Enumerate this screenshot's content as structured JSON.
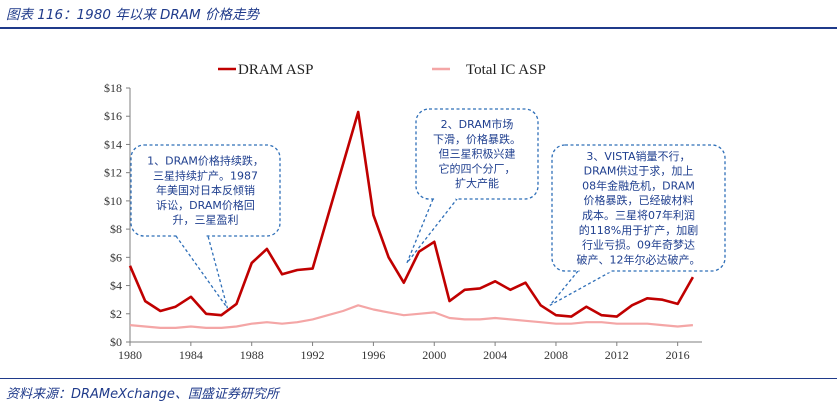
{
  "figure": {
    "title": "图表 116：1980 年以来 DRAM 价格走势",
    "source": "资料来源：DRAMeXchange、国盛证券研究所"
  },
  "chart_data": {
    "type": "line",
    "xlabel": "",
    "ylabel": "",
    "xlim": [
      1980,
      2017.6
    ],
    "ylim": [
      0,
      18
    ],
    "x_ticks": [
      "1980",
      "1984",
      "1988",
      "1992",
      "1996",
      "2000",
      "2004",
      "2008",
      "2012",
      "2016"
    ],
    "y_ticks": [
      "$0",
      "$2",
      "$4",
      "$6",
      "$8",
      "$10",
      "$12",
      "$14",
      "$16",
      "$18"
    ],
    "grid": false,
    "legend_position": "top-center",
    "series": [
      {
        "name": "DRAM ASP",
        "color": "#c00000",
        "points": [
          [
            1980,
            5.4
          ],
          [
            1981,
            2.9
          ],
          [
            1982,
            2.2
          ],
          [
            1983,
            2.5
          ],
          [
            1984,
            3.2
          ],
          [
            1985,
            2.0
          ],
          [
            1986,
            1.9
          ],
          [
            1987,
            2.7
          ],
          [
            1988,
            5.6
          ],
          [
            1989,
            6.6
          ],
          [
            1990,
            4.8
          ],
          [
            1991,
            5.1
          ],
          [
            1992,
            5.2
          ],
          [
            1993,
            8.9
          ],
          [
            1994,
            12.6
          ],
          [
            1995,
            16.3
          ],
          [
            1996,
            9.0
          ],
          [
            1997,
            6.0
          ],
          [
            1998,
            4.2
          ],
          [
            1999,
            6.4
          ],
          [
            2000,
            7.1
          ],
          [
            2001,
            2.9
          ],
          [
            2002,
            3.7
          ],
          [
            2003,
            3.8
          ],
          [
            2004,
            4.3
          ],
          [
            2005,
            3.7
          ],
          [
            2006,
            4.2
          ],
          [
            2007,
            2.6
          ],
          [
            2008,
            1.9
          ],
          [
            2009,
            1.8
          ],
          [
            2010,
            2.5
          ],
          [
            2011,
            1.9
          ],
          [
            2012,
            1.8
          ],
          [
            2013,
            2.6
          ],
          [
            2014,
            3.1
          ],
          [
            2015,
            3.0
          ],
          [
            2016,
            2.7
          ],
          [
            2017,
            4.6
          ]
        ]
      },
      {
        "name": "Total IC ASP",
        "color": "#f4a6a6",
        "points": [
          [
            1980,
            1.2
          ],
          [
            1981,
            1.1
          ],
          [
            1982,
            1.0
          ],
          [
            1983,
            1.0
          ],
          [
            1984,
            1.1
          ],
          [
            1985,
            1.0
          ],
          [
            1986,
            1.0
          ],
          [
            1987,
            1.1
          ],
          [
            1988,
            1.3
          ],
          [
            1989,
            1.4
          ],
          [
            1990,
            1.3
          ],
          [
            1991,
            1.4
          ],
          [
            1992,
            1.6
          ],
          [
            1993,
            1.9
          ],
          [
            1994,
            2.2
          ],
          [
            1995,
            2.6
          ],
          [
            1996,
            2.3
          ],
          [
            1997,
            2.1
          ],
          [
            1998,
            1.9
          ],
          [
            1999,
            2.0
          ],
          [
            2000,
            2.1
          ],
          [
            2001,
            1.7
          ],
          [
            2002,
            1.6
          ],
          [
            2003,
            1.6
          ],
          [
            2004,
            1.7
          ],
          [
            2005,
            1.6
          ],
          [
            2006,
            1.5
          ],
          [
            2007,
            1.4
          ],
          [
            2008,
            1.3
          ],
          [
            2009,
            1.3
          ],
          [
            2010,
            1.4
          ],
          [
            2011,
            1.4
          ],
          [
            2012,
            1.3
          ],
          [
            2013,
            1.3
          ],
          [
            2014,
            1.3
          ],
          [
            2015,
            1.2
          ],
          [
            2016,
            1.1
          ],
          [
            2017,
            1.2
          ]
        ]
      }
    ],
    "annotations": [
      {
        "id": "note-1",
        "lines": [
          "1、DRAM价格持续跌，",
          "三星持续扩产。1987",
          "年美国对日本反倾销",
          "诉讼，DRAM价格回",
          "升，三星盈利"
        ],
        "pointer": [
          1986.4,
          2.4
        ]
      },
      {
        "id": "note-2",
        "lines": [
          "2、DRAM市场",
          "下滑，价格暴跌。",
          "但三星积极兴建",
          "它的四个分厂，",
          "扩大产能"
        ],
        "pointer": [
          1998.2,
          5.6
        ]
      },
      {
        "id": "note-3",
        "lines": [
          "3、VISTA销量不行，",
          "DRAM供过于求，加上",
          "08年金融危机，DRAM",
          "价格暴跌，已经破材料",
          "成本。三星将07年利润",
          "的118%用于扩产，加剧",
          "行业亏损。09年奇梦达",
          "破产、12年尔必达破产。"
        ],
        "pointer": [
          2007.6,
          2.6
        ]
      }
    ]
  }
}
